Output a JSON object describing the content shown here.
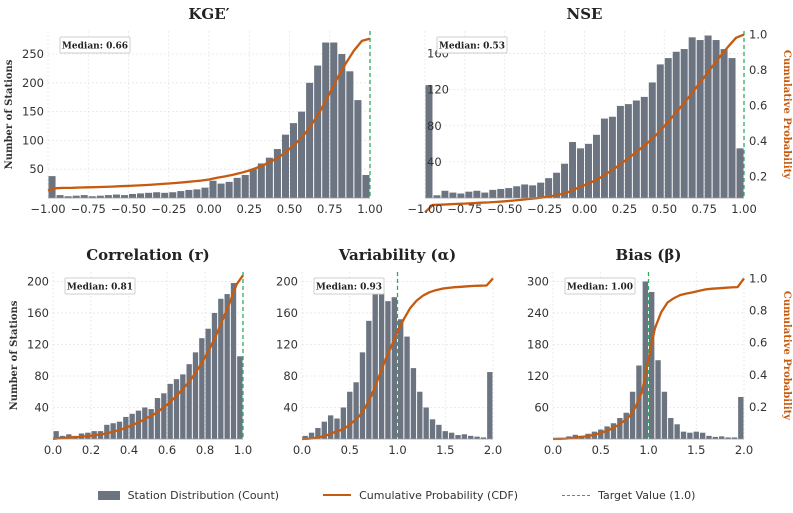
{
  "colors": {
    "bar": "#6b7480",
    "cdf": "#c65a0f",
    "target": "#2eaa66",
    "grid": "#e6e6e6"
  },
  "legend": {
    "station": "Station Distribution (Count)",
    "cdf": "Cumulative Probability (CDF)",
    "target": "Target Value (1.0)"
  },
  "chart_data": [
    {
      "type": "bar",
      "title": "KGE′",
      "median_label": "Median: 0.66",
      "ylabel": "Number of Stations",
      "y2label": "",
      "xlim": [
        -1.0,
        1.0
      ],
      "ylim": [
        0,
        290
      ],
      "y2lim": [
        -0.05,
        1.05
      ],
      "xticks": [
        "−1.00",
        "−0.75",
        "−0.50",
        "−0.25",
        "0.00",
        "0.25",
        "0.50",
        "0.75",
        "1.00"
      ],
      "xtick_values": [
        -1.0,
        -0.75,
        -0.5,
        -0.25,
        0.0,
        0.25,
        0.5,
        0.75,
        1.0
      ],
      "yticks": [
        50,
        100,
        150,
        200,
        250
      ],
      "y2ticks": [],
      "bin_edges": [
        -1.0,
        -0.95,
        -0.9,
        -0.85,
        -0.8,
        -0.75,
        -0.7,
        -0.65,
        -0.6,
        -0.55,
        -0.5,
        -0.45,
        -0.4,
        -0.35,
        -0.3,
        -0.25,
        -0.2,
        -0.15,
        -0.1,
        -0.05,
        0.0,
        0.05,
        0.1,
        0.15,
        0.2,
        0.25,
        0.3,
        0.35,
        0.4,
        0.45,
        0.5,
        0.55,
        0.6,
        0.65,
        0.7,
        0.75,
        0.8,
        0.85,
        0.9,
        0.95,
        1.0
      ],
      "counts": [
        38,
        5,
        3,
        4,
        5,
        3,
        4,
        5,
        6,
        5,
        7,
        8,
        9,
        10,
        9,
        10,
        12,
        14,
        15,
        18,
        30,
        25,
        28,
        35,
        40,
        50,
        60,
        70,
        85,
        110,
        130,
        150,
        200,
        230,
        270,
        270,
        250,
        220,
        170,
        40
      ],
      "target": 1.0,
      "show_left_axis": true,
      "show_right_axis": false
    },
    {
      "type": "bar",
      "title": "NSE",
      "median_label": "Median: 0.53",
      "ylabel": "",
      "y2label": "Cumulative Probability",
      "xlim": [
        -1.0,
        1.0
      ],
      "ylim": [
        0,
        185
      ],
      "y2lim": [
        0.08,
        1.02
      ],
      "xticks": [
        "−1.00",
        "−0.75",
        "−0.50",
        "−0.25",
        "0.00",
        "0.25",
        "0.50",
        "0.75",
        "1.00"
      ],
      "xtick_values": [
        -1.0,
        -0.75,
        -0.5,
        -0.25,
        0.0,
        0.25,
        0.5,
        0.75,
        1.0
      ],
      "yticks": [
        40,
        80,
        120,
        160
      ],
      "y2ticks": [
        0.2,
        0.4,
        0.6,
        0.8,
        1.0
      ],
      "bin_edges": [
        -1.0,
        -0.95,
        -0.9,
        -0.85,
        -0.8,
        -0.75,
        -0.7,
        -0.65,
        -0.6,
        -0.55,
        -0.5,
        -0.45,
        -0.4,
        -0.35,
        -0.3,
        -0.25,
        -0.2,
        -0.15,
        -0.1,
        -0.05,
        0.0,
        0.05,
        0.1,
        0.15,
        0.2,
        0.25,
        0.3,
        0.35,
        0.4,
        0.45,
        0.5,
        0.55,
        0.6,
        0.65,
        0.7,
        0.75,
        0.8,
        0.85,
        0.9,
        0.95,
        1.0
      ],
      "counts": [
        125,
        3,
        8,
        6,
        5,
        7,
        8,
        6,
        9,
        10,
        11,
        13,
        15,
        14,
        17,
        22,
        28,
        38,
        62,
        55,
        60,
        70,
        88,
        90,
        102,
        104,
        108,
        112,
        128,
        148,
        155,
        162,
        165,
        178,
        175,
        180,
        175,
        165,
        155,
        55
      ],
      "target": 1.0,
      "show_left_axis": false,
      "show_right_axis": true
    },
    {
      "type": "bar",
      "title": "Correlation (r)",
      "median_label": "Median: 0.81",
      "ylabel": "Number of Stations",
      "y2label": "",
      "xlim": [
        0.0,
        1.0
      ],
      "ylim": [
        0,
        212
      ],
      "y2lim": [
        0.0,
        1.02
      ],
      "xticks": [
        "0.0",
        "0.2",
        "0.4",
        "0.6",
        "0.8",
        "1.0"
      ],
      "xtick_values": [
        0.0,
        0.2,
        0.4,
        0.6,
        0.8,
        1.0
      ],
      "yticks": [
        40,
        80,
        120,
        160,
        200
      ],
      "y2ticks": [],
      "bin_edges": [
        0.0,
        0.0333,
        0.0667,
        0.1,
        0.1333,
        0.1667,
        0.2,
        0.2333,
        0.2667,
        0.3,
        0.3333,
        0.3667,
        0.4,
        0.4333,
        0.4667,
        0.5,
        0.5333,
        0.5667,
        0.6,
        0.6333,
        0.6667,
        0.7,
        0.7333,
        0.7667,
        0.8,
        0.8333,
        0.8667,
        0.9,
        0.9333,
        0.9667,
        1.0
      ],
      "counts": [
        10,
        4,
        6,
        4,
        7,
        8,
        10,
        10,
        18,
        20,
        22,
        28,
        32,
        36,
        40,
        38,
        52,
        58,
        70,
        76,
        82,
        95,
        110,
        128,
        140,
        160,
        178,
        184,
        198,
        105
      ],
      "target": 1.0,
      "show_left_axis": true,
      "show_right_axis": false
    },
    {
      "type": "bar",
      "title": "Variability (α)",
      "median_label": "Median: 0.93",
      "ylabel": "",
      "y2label": "",
      "xlim": [
        0.0,
        2.0
      ],
      "ylim": [
        0,
        212
      ],
      "y2lim": [
        0.0,
        1.04
      ],
      "xticks": [
        "0.0",
        "0.5",
        "1.0",
        "1.5",
        "2.0"
      ],
      "xtick_values": [
        0.0,
        0.5,
        1.0,
        1.5,
        2.0
      ],
      "yticks": [
        40,
        80,
        120,
        160,
        200
      ],
      "y2ticks": [],
      "bin_edges": [
        0.0,
        0.0667,
        0.1333,
        0.2,
        0.2667,
        0.3333,
        0.4,
        0.4667,
        0.5333,
        0.6,
        0.6667,
        0.7333,
        0.8,
        0.8667,
        0.9333,
        1.0,
        1.0667,
        1.1333,
        1.2,
        1.2667,
        1.3333,
        1.4,
        1.4667,
        1.5333,
        1.6,
        1.6667,
        1.7333,
        1.8,
        1.8667,
        1.9333,
        2.0
      ],
      "counts": [
        4,
        8,
        14,
        22,
        30,
        26,
        40,
        60,
        72,
        110,
        150,
        195,
        200,
        175,
        180,
        152,
        130,
        90,
        60,
        40,
        25,
        18,
        10,
        8,
        5,
        6,
        4,
        3,
        2,
        85
      ],
      "target": 1.0,
      "show_left_axis": true,
      "show_right_axis": false
    },
    {
      "type": "bar",
      "title": "Bias (β)",
      "median_label": "Median: 1.00",
      "ylabel": "",
      "y2label": "Cumulative Probability",
      "xlim": [
        0.0,
        2.0
      ],
      "ylim": [
        0,
        318
      ],
      "y2lim": [
        0.0,
        1.04
      ],
      "xticks": [
        "0.0",
        "0.5",
        "1.0",
        "1.5",
        "2.0"
      ],
      "xtick_values": [
        0.0,
        0.5,
        1.0,
        1.5,
        2.0
      ],
      "yticks": [
        60,
        120,
        180,
        240,
        300
      ],
      "y2ticks": [
        0.2,
        0.4,
        0.6,
        0.8,
        1.0
      ],
      "bin_edges": [
        0.0,
        0.0667,
        0.1333,
        0.2,
        0.2667,
        0.3333,
        0.4,
        0.4667,
        0.5333,
        0.6,
        0.6667,
        0.7333,
        0.8,
        0.8667,
        0.9333,
        1.0,
        1.0667,
        1.1333,
        1.2,
        1.2667,
        1.3333,
        1.4,
        1.4667,
        1.5333,
        1.6,
        1.6667,
        1.7333,
        1.8,
        1.8667,
        1.9333,
        2.0
      ],
      "counts": [
        2,
        2,
        5,
        8,
        6,
        10,
        14,
        18,
        24,
        30,
        40,
        50,
        90,
        140,
        300,
        280,
        150,
        90,
        40,
        28,
        14,
        12,
        14,
        12,
        6,
        4,
        5,
        3,
        3,
        80
      ],
      "target": 1.0,
      "show_left_axis": true,
      "show_right_axis": true
    }
  ]
}
